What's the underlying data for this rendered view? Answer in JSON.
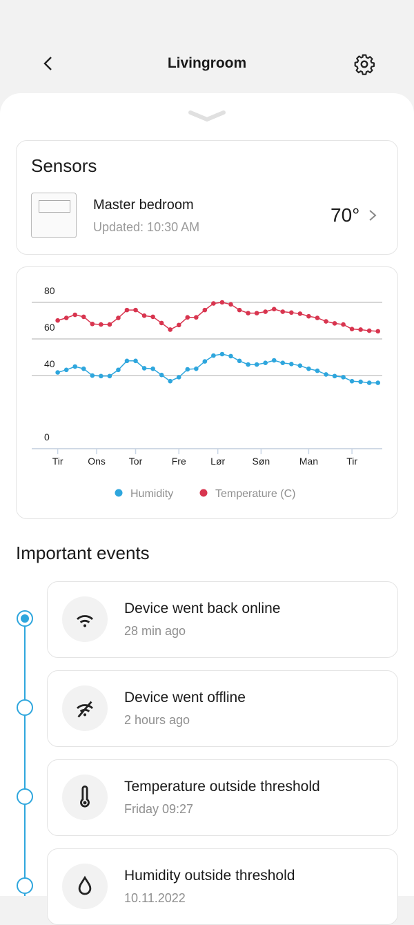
{
  "header": {
    "title": "Livingroom"
  },
  "sensors": {
    "title": "Sensors",
    "device": {
      "name": "Master bedroom",
      "updated": "Updated: 10:30 AM",
      "temperature": "70°"
    }
  },
  "chart_data": {
    "type": "line",
    "x": [
      0,
      1,
      2,
      3,
      4,
      5,
      6,
      7,
      8,
      9,
      10,
      11,
      12,
      13,
      14,
      15,
      16,
      17,
      18,
      19,
      20,
      21,
      22,
      23,
      24,
      25,
      26,
      27,
      28,
      29,
      30,
      31,
      32,
      33,
      34,
      35,
      36,
      37
    ],
    "xlim": [
      -3,
      37.5
    ],
    "xticks": [
      {
        "value": 0,
        "label": "Tir"
      },
      {
        "value": 4.5,
        "label": "Ons"
      },
      {
        "value": 9,
        "label": "Tor"
      },
      {
        "value": 14,
        "label": "Fre"
      },
      {
        "value": 18.5,
        "label": "Lør"
      },
      {
        "value": 23.5,
        "label": "Søn"
      },
      {
        "value": 29,
        "label": "Man"
      },
      {
        "value": 34,
        "label": "Tir"
      }
    ],
    "ylim": [
      0,
      80
    ],
    "yticks": [
      0,
      40,
      60,
      80
    ],
    "grid": true,
    "legend": "bottom",
    "series": [
      {
        "name": "Humidity",
        "color": "#2ea6dd",
        "values": [
          41.7,
          43.1,
          44.9,
          43.7,
          40,
          39.7,
          39.7,
          43.1,
          48,
          48,
          44,
          43.7,
          40.3,
          36.9,
          39.1,
          43.4,
          43.7,
          47.7,
          50.9,
          51.7,
          50.6,
          48,
          46,
          46,
          46.9,
          48.3,
          46.9,
          46.3,
          45.4,
          43.7,
          42.6,
          40.6,
          39.7,
          39.1,
          36.9,
          36.6,
          36,
          36
        ]
      },
      {
        "name": "Temperature (C)",
        "color": "#d8354f",
        "values": [
          70.1,
          71.5,
          73.2,
          72.1,
          68.2,
          67.9,
          67.9,
          71.5,
          75.8,
          75.8,
          72.7,
          72.1,
          68.7,
          65.1,
          67.6,
          71.8,
          71.8,
          75.8,
          79.4,
          80,
          78.9,
          75.8,
          74.1,
          74.1,
          74.9,
          76.3,
          74.9,
          74.4,
          73.8,
          72.4,
          71.5,
          69.6,
          68.5,
          67.9,
          65.4,
          65.1,
          64.5,
          64.2
        ]
      }
    ]
  },
  "events": {
    "title": "Important events",
    "items": [
      {
        "title": "Device went back online",
        "time": "28 min ago"
      },
      {
        "title": "Device went offline",
        "time": "2 hours ago"
      },
      {
        "title": "Temperature outside threshold",
        "time": "Friday 09:27"
      },
      {
        "title": "Humidity outside threshold",
        "time": "10.11.2022"
      }
    ]
  }
}
